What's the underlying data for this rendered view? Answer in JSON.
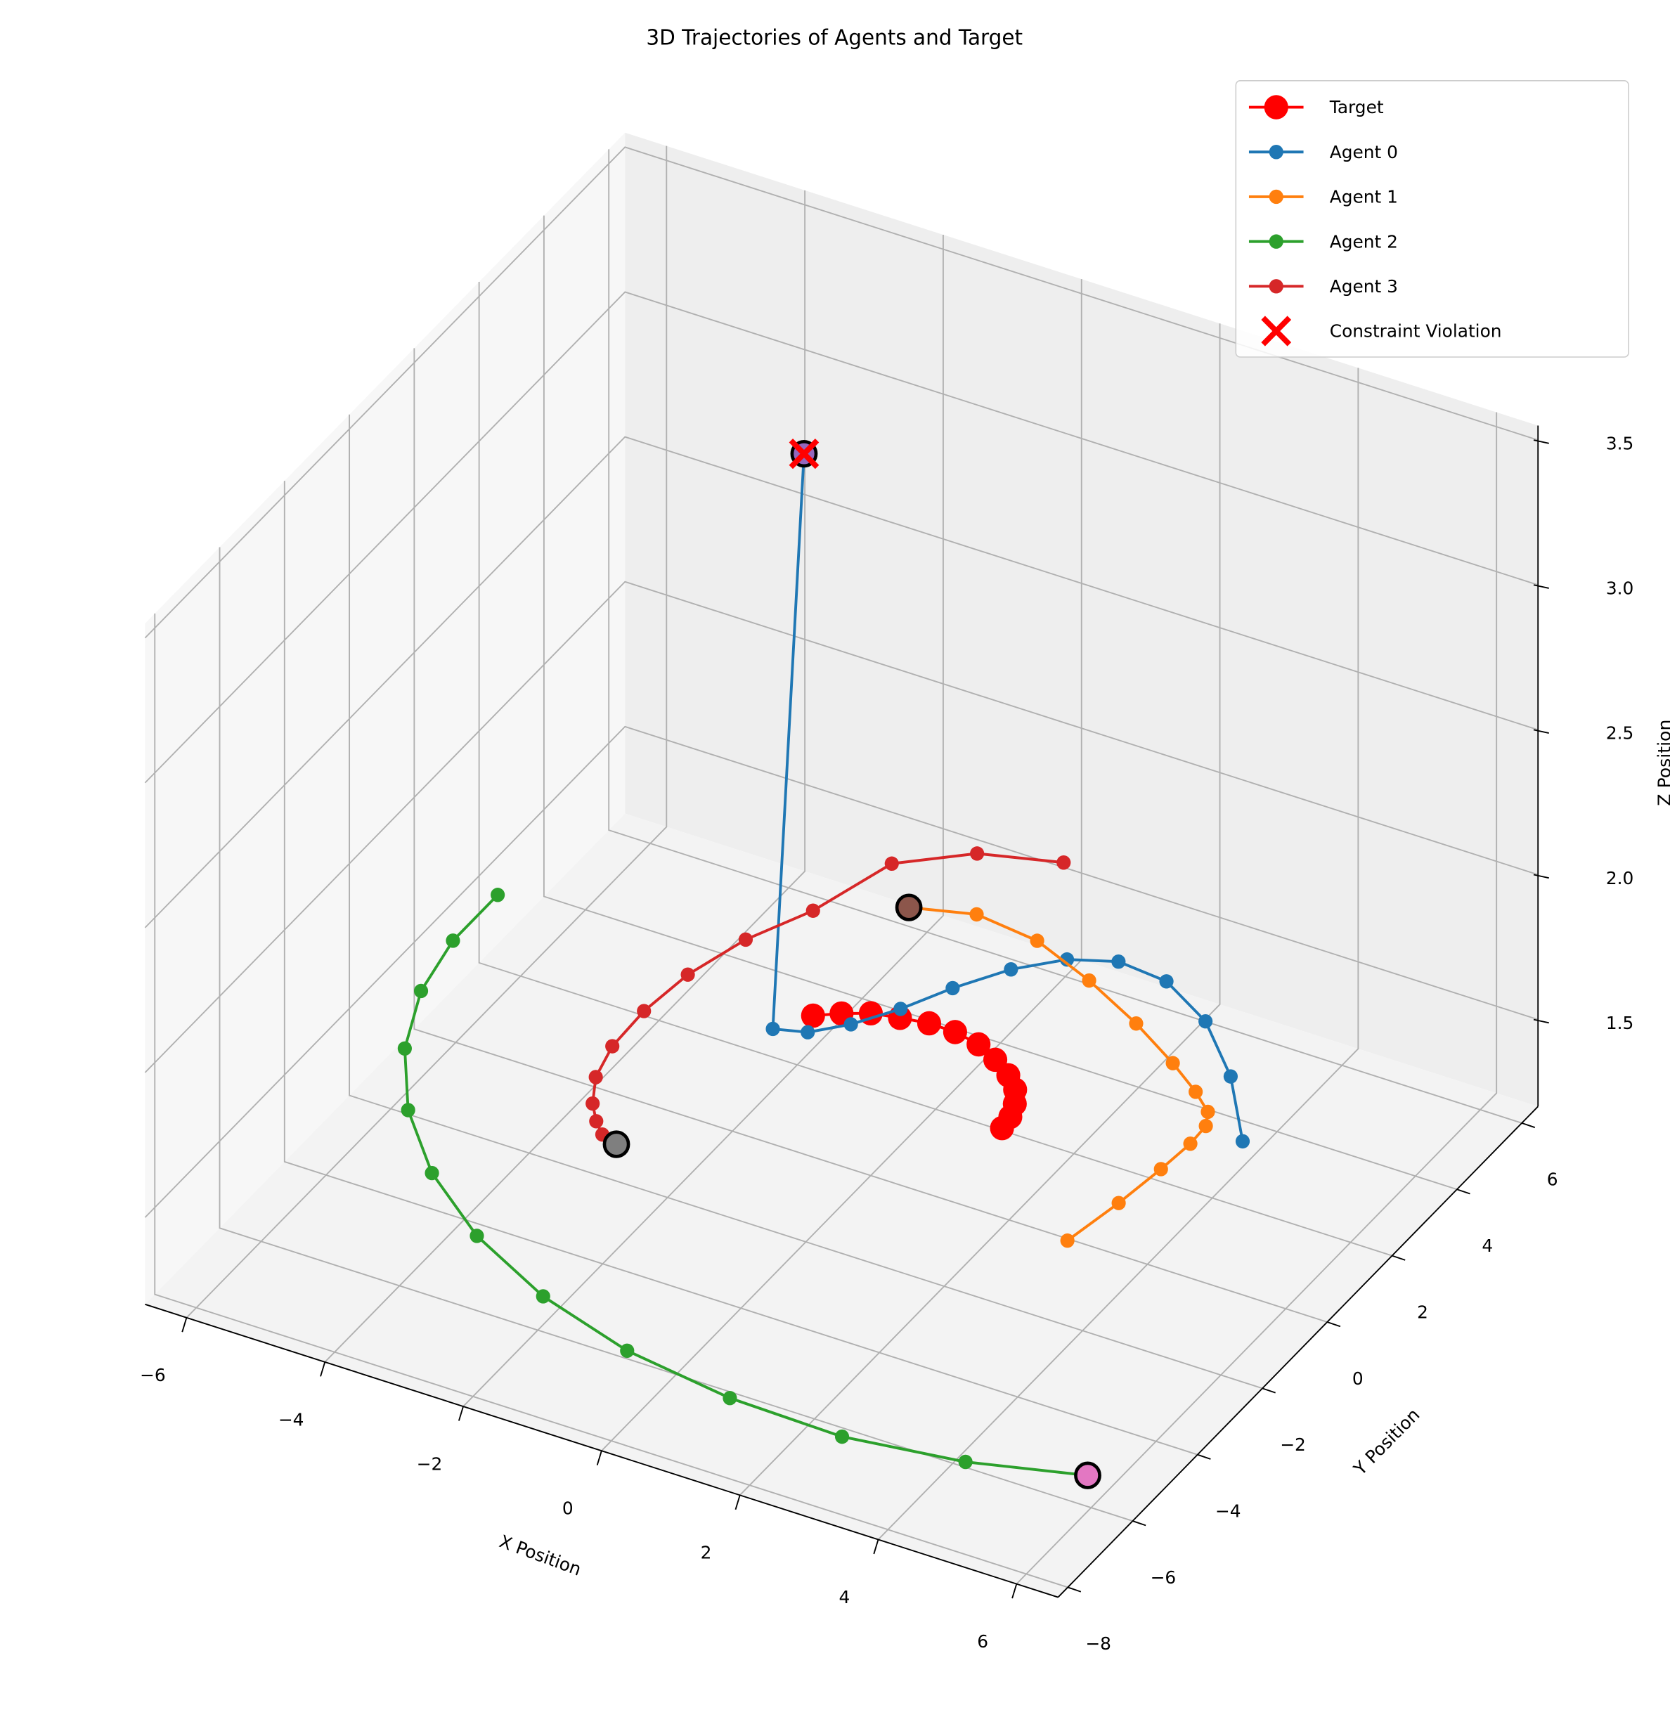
{
  "chart_data": {
    "type": "line3d",
    "title": "3D Trajectories of Agents and Target",
    "x_label": "X Position",
    "y_label": "Y Position",
    "z_label": "Z Position",
    "xlim": [
      -6.6,
      6.6
    ],
    "ylim": [
      -8.3,
      6.5
    ],
    "zlim": [
      1.2,
      3.55
    ],
    "xticks": [
      {
        "value": -6,
        "label": "−6"
      },
      {
        "value": -4,
        "label": "−4"
      },
      {
        "value": -2,
        "label": "−2"
      },
      0,
      2,
      4,
      6
    ],
    "yticks": [
      {
        "value": -8,
        "label": "−8"
      },
      {
        "value": -6,
        "label": "−6"
      },
      {
        "value": -4,
        "label": "−4"
      },
      {
        "value": -2,
        "label": "−2"
      },
      0,
      2,
      4,
      6
    ],
    "zticks": [
      1.5,
      {
        "value": 2,
        "label": "2.0"
      },
      2.5,
      {
        "value": 3,
        "label": "3.0"
      },
      3.5
    ],
    "grid": true,
    "legend": "upper right",
    "series": [
      {
        "name": "Target",
        "color": "#ff0000",
        "marker_size": "large",
        "x": [
          -1.42,
          -1.13,
          -0.81,
          -0.44,
          -0.06,
          0.32,
          0.71,
          1.06,
          1.37,
          1.6,
          1.75,
          1.84,
          1.87
        ],
        "y": [
          1.25,
          1.51,
          1.73,
          1.84,
          1.93,
          1.92,
          1.81,
          1.58,
          1.32,
          1.04,
          0.71,
          0.38,
          0.06
        ],
        "z": [
          1.5,
          1.5,
          1.5,
          1.5,
          1.5,
          1.5,
          1.5,
          1.5,
          1.5,
          1.5,
          1.5,
          1.5,
          1.5
        ]
      },
      {
        "name": "Agent 0",
        "color": "#1f77b4",
        "marker_size": "medium",
        "current_color": "#9467bd",
        "x": [
          4.66,
          3.83,
          2.96,
          2.1,
          1.36,
          0.77,
          0.26,
          -0.18,
          -0.53,
          -0.91,
          -1.3,
          -1.72,
          -1.33
        ],
        "y": [
          1.53,
          2.93,
          4.01,
          4.64,
          4.74,
          4.41,
          3.77,
          2.91,
          2.05,
          1.33,
          0.83,
          0.65,
          0.78
        ],
        "z": [
          1.5,
          1.5,
          1.5,
          1.5,
          1.5,
          1.5,
          1.5,
          1.5,
          1.5,
          1.5,
          1.5,
          1.5,
          3.5
        ]
      },
      {
        "name": "Agent 1",
        "color": "#ff7f0e",
        "marker_size": "medium",
        "current_color": "#8c564b",
        "x": [
          3.8,
          3.96,
          4.06,
          4.11,
          4.09,
          3.96,
          3.61,
          3.05,
          2.22,
          1.24,
          0.24,
          -0.71,
          -1.53
        ],
        "y": [
          -2.04,
          -0.8,
          0.29,
          1.09,
          1.61,
          1.95,
          2.32,
          2.81,
          3.45,
          4.09,
          4.62,
          4.78,
          4.44
        ],
        "z": [
          1.5,
          1.5,
          1.5,
          1.5,
          1.5,
          1.5,
          1.5,
          1.5,
          1.5,
          1.5,
          1.5,
          1.5,
          1.5
        ]
      },
      {
        "name": "Agent 2",
        "color": "#2ca02c",
        "marker_size": "medium",
        "current_color": "#e377c2",
        "x": [
          -6.19,
          -6.19,
          -6.0,
          -5.56,
          -4.86,
          -3.92,
          -2.75,
          -1.37,
          0.14,
          1.78,
          3.43,
          5.06,
          6.55
        ],
        "y": [
          1.7,
          0.32,
          -1.07,
          -2.51,
          -3.9,
          -5.17,
          -6.28,
          -7.18,
          -7.81,
          -8.14,
          -8.2,
          -7.87,
          -7.28
        ],
        "z": [
          1.5,
          1.5,
          1.5,
          1.5,
          1.5,
          1.5,
          1.5,
          1.5,
          1.5,
          1.5,
          1.5,
          1.5,
          1.5
        ]
      },
      {
        "name": "Agent 3",
        "color": "#d62728",
        "marker_size": "medium",
        "current_color": "#7f7f7f",
        "x": [
          -0.31,
          -1.36,
          -2.19,
          -2.55,
          -2.98,
          -3.24,
          -3.33,
          -3.3,
          -3.15,
          -2.9,
          -2.67,
          -2.46,
          -2.2
        ],
        "y": [
          6.61,
          6.18,
          5.32,
          3.66,
          2.5,
          1.27,
          0.11,
          -0.93,
          -1.76,
          -2.39,
          -2.77,
          -3.03,
          -3.15
        ],
        "z": [
          1.5,
          1.5,
          1.5,
          1.5,
          1.5,
          1.5,
          1.5,
          1.5,
          1.5,
          1.5,
          1.5,
          1.5,
          1.5
        ]
      }
    ],
    "violations": {
      "name": "Constraint Violation",
      "color": "#ff0000",
      "x": [
        -1.33
      ],
      "y": [
        0.78
      ],
      "z": [
        3.5
      ]
    }
  }
}
